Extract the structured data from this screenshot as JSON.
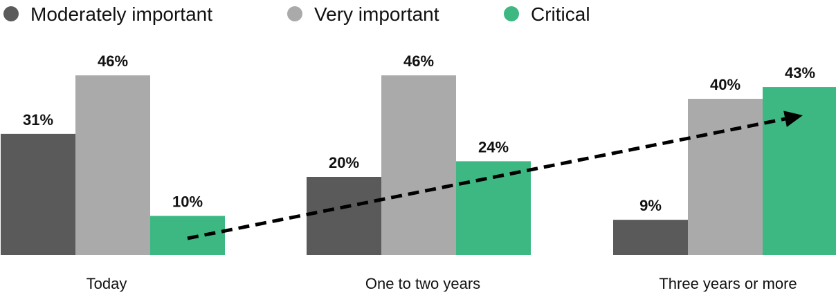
{
  "chart_data": {
    "type": "bar",
    "title": "",
    "xlabel": "",
    "ylabel": "",
    "ylim": [
      0,
      50
    ],
    "grid": false,
    "legend_position": "top-left",
    "categories": [
      "Today",
      "One to two years",
      "Three years or more"
    ],
    "series": [
      {
        "name": "Moderately important",
        "color": "#5a5a5a",
        "values": [
          31,
          20,
          9
        ]
      },
      {
        "name": "Very important",
        "color": "#aaaaaa",
        "values": [
          46,
          46,
          40
        ]
      },
      {
        "name": "Critical",
        "color": "#3db882",
        "values": [
          10,
          24,
          43
        ]
      }
    ],
    "data_label_suffix": "%",
    "annotations": [
      {
        "type": "dashed-arrow",
        "description": "upward trend in Critical from Today to Three years or more"
      }
    ]
  }
}
